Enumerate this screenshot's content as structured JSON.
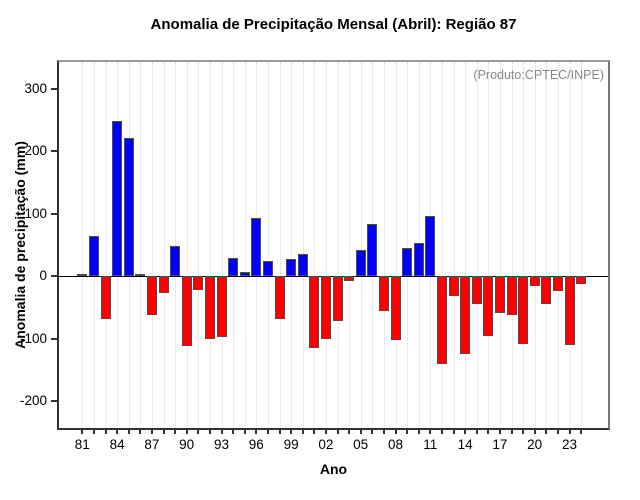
{
  "chart_data": {
    "type": "bar",
    "title": "Anomalia de Precipitação Mensal (Abril): Região 87",
    "annotation": "(Produto:CPTEC/INPE)",
    "xlabel": "Ano",
    "ylabel": "Anomalia de precipitação (mm)",
    "x": [
      1981,
      1982,
      1983,
      1984,
      1985,
      1986,
      1987,
      1988,
      1989,
      1990,
      1991,
      1992,
      1993,
      1994,
      1995,
      1996,
      1997,
      1998,
      1999,
      2000,
      2001,
      2002,
      2003,
      2004,
      2005,
      2006,
      2007,
      2008,
      2009,
      2010,
      2011,
      2012,
      2013,
      2014,
      2015,
      2016,
      2017,
      2018,
      2019,
      2020,
      2021,
      2022,
      2023,
      2024
    ],
    "values": [
      4,
      64,
      -69,
      248,
      222,
      3,
      -62,
      -27,
      48,
      -112,
      -22,
      -101,
      -98,
      29,
      7,
      94,
      25,
      -68,
      28,
      35,
      -115,
      -100,
      -72,
      -8,
      42,
      83,
      -56,
      -102,
      45,
      53,
      96,
      -140,
      -32,
      -125,
      -44,
      -96,
      -59,
      -62,
      -108,
      -16,
      -45,
      -24,
      -110,
      -12
    ],
    "ylim": [
      -243,
      343
    ],
    "yticks": [
      300,
      200,
      100,
      0,
      -100,
      -200
    ],
    "ytick_labels": [
      "300",
      "200",
      "100",
      "0",
      "-100",
      "-200"
    ],
    "xtick_years": [
      1981,
      1984,
      1987,
      1990,
      1993,
      1996,
      1999,
      2002,
      2005,
      2008,
      2011,
      2014,
      2017,
      2020,
      2023
    ],
    "xtick_labels": [
      "81",
      "84",
      "87",
      "90",
      "93",
      "96",
      "99",
      "02",
      "05",
      "08",
      "11",
      "14",
      "17",
      "20",
      "23"
    ],
    "grid": "vertical-dotted",
    "legend": "none",
    "colors": {
      "positive": "#0000ff",
      "negative": "#ff0000",
      "bar_border": "#4d4d4d",
      "grid": "#d4d4d4",
      "annotation_text": "#888888",
      "axis_text": "#000000"
    }
  }
}
